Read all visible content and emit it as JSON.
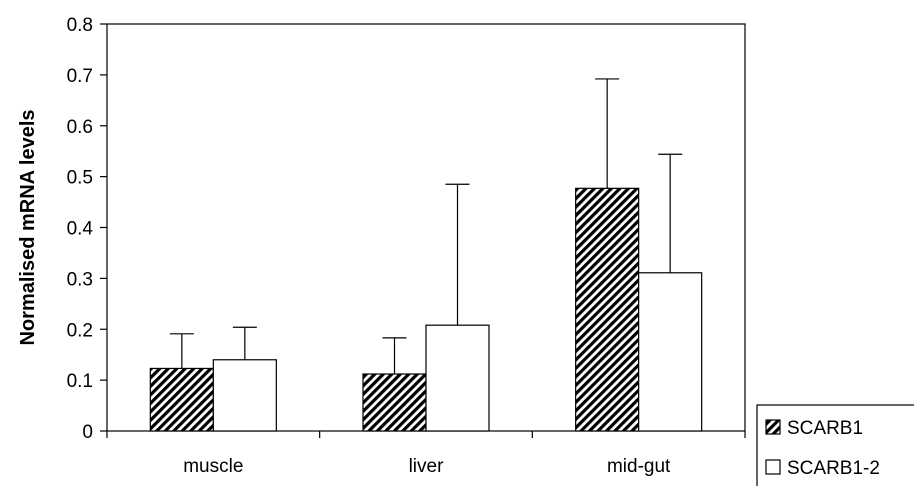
{
  "chart_data": {
    "type": "bar",
    "title": "",
    "xlabel": "",
    "ylabel": "Normalised mRNA levels",
    "ylim": [
      0,
      0.8
    ],
    "yticks": [
      "0",
      "0.1",
      "0.2",
      "0.3",
      "0.4",
      "0.5",
      "0.6",
      "0.7",
      "0.8"
    ],
    "categories": [
      "muscle",
      "liver",
      "mid-gut"
    ],
    "series": [
      {
        "name": "SCARB1",
        "values": [
          0.123,
          0.112,
          0.477
        ],
        "errors": [
          0.068,
          0.071,
          0.215
        ],
        "fill": "hatched"
      },
      {
        "name": "SCARB1-2",
        "values": [
          0.14,
          0.208,
          0.311
        ],
        "errors": [
          0.064,
          0.277,
          0.233
        ],
        "fill": "white"
      }
    ],
    "grid": false,
    "legend": "bottom-right"
  }
}
